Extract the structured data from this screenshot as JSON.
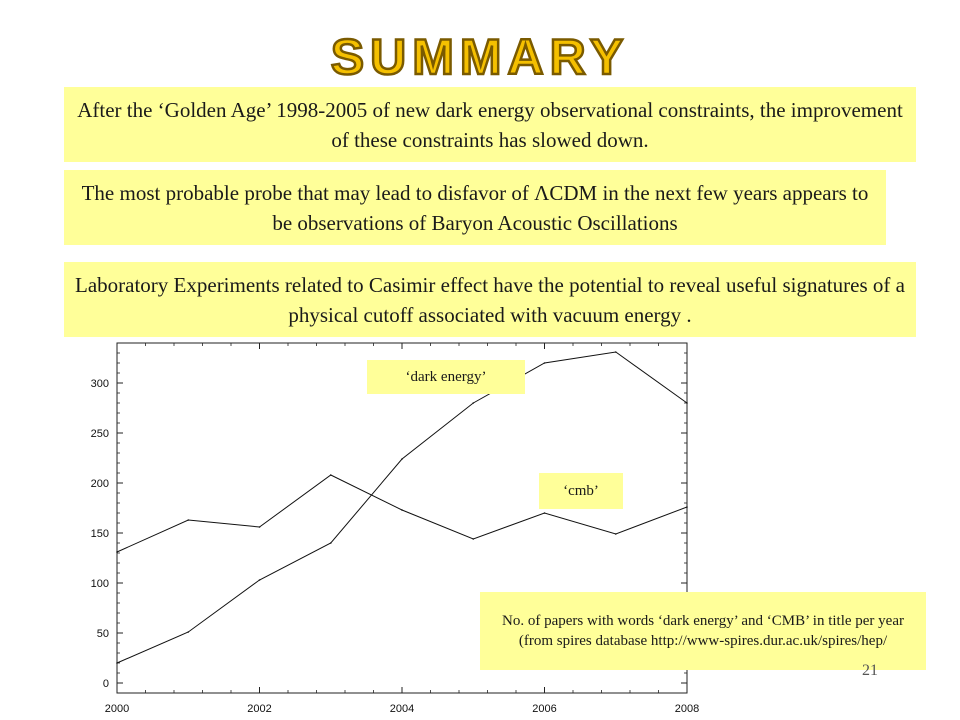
{
  "slide": {
    "title": "SUMMARY",
    "bullets": [
      "After the ‘Golden Age’ 1998-2005 of new dark energy observational constraints, the improvement of these constraints has slowed down.",
      "The most probable probe that may lead to disfavor of ΛCDM in the next few years appears to be observations of Baryon Acoustic Oscillations",
      "Laboratory Experiments related to Casimir effect have the potential to reveal useful signatures of a physical cutoff associated with vacuum energy ."
    ],
    "note": "No. of papers with words ‘dark energy’ and ‘CMB’ in title per year  (from spires database http://www-spires.dur.ac.uk/spires/hep/",
    "page_number": "21"
  },
  "colors": {
    "box_fill": "#ffff99",
    "title_fill": "#f5c000",
    "title_stroke": "#7a5a00"
  },
  "chart_data": {
    "type": "line",
    "x": [
      2000,
      2001,
      2002,
      2003,
      2004,
      2005,
      2006,
      2007,
      2008
    ],
    "series": [
      {
        "name": "‘dark energy’",
        "values": [
          20,
          51,
          103,
          140,
          224,
          280,
          320,
          331,
          280
        ]
      },
      {
        "name": "‘cmb’",
        "values": [
          131,
          163,
          156,
          208,
          173,
          144,
          170,
          149,
          176
        ]
      }
    ],
    "xlim": [
      2000,
      2008
    ],
    "ylim": [
      -10,
      340
    ],
    "xticks": [
      "2000",
      "2002",
      "2004",
      "2006",
      "2008"
    ],
    "yticks": [
      "0",
      "50",
      "100",
      "150",
      "200",
      "250",
      "300"
    ],
    "xtick_values": [
      2000,
      2002,
      2004,
      2006,
      2008
    ],
    "ytick_values": [
      0,
      50,
      100,
      150,
      200,
      250,
      300
    ],
    "grid": false,
    "legend": "inline-labels"
  }
}
